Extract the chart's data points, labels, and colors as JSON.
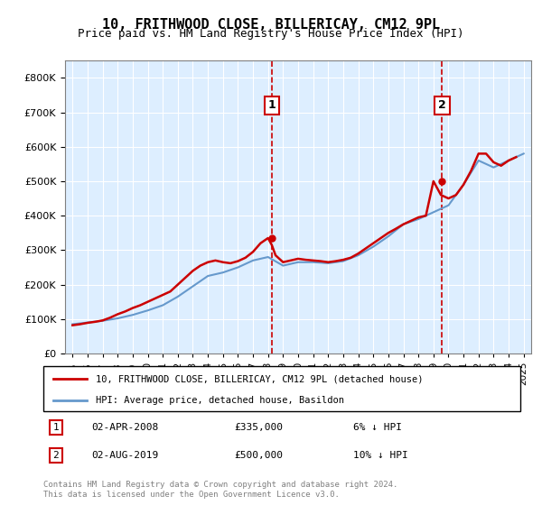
{
  "title": "10, FRITHWOOD CLOSE, BILLERICAY, CM12 9PL",
  "subtitle": "Price paid vs. HM Land Registry's House Price Index (HPI)",
  "legend_line1": "10, FRITHWOOD CLOSE, BILLERICAY, CM12 9PL (detached house)",
  "legend_line2": "HPI: Average price, detached house, Basildon",
  "annotation1": {
    "label": "1",
    "date": "02-APR-2008",
    "price": "£335,000",
    "pct": "6% ↓ HPI"
  },
  "annotation2": {
    "label": "2",
    "date": "02-AUG-2019",
    "price": "£500,000",
    "pct": "10% ↓ HPI"
  },
  "footer": "Contains HM Land Registry data © Crown copyright and database right 2024.\nThis data is licensed under the Open Government Licence v3.0.",
  "property_color": "#cc0000",
  "hpi_color": "#6699cc",
  "background_color": "#ddeeff",
  "years": [
    1995,
    1996,
    1997,
    1998,
    1999,
    2000,
    2001,
    2002,
    2003,
    2004,
    2005,
    2006,
    2007,
    2008,
    2009,
    2010,
    2011,
    2012,
    2013,
    2014,
    2015,
    2016,
    2017,
    2018,
    2019,
    2020,
    2021,
    2022,
    2023,
    2024,
    2025
  ],
  "hpi_values": [
    85000,
    90000,
    95000,
    102000,
    112000,
    125000,
    140000,
    165000,
    195000,
    225000,
    235000,
    250000,
    270000,
    280000,
    255000,
    265000,
    265000,
    262000,
    268000,
    285000,
    310000,
    340000,
    375000,
    390000,
    410000,
    430000,
    490000,
    560000,
    540000,
    560000,
    580000
  ],
  "property_values_x": [
    1995.0,
    1995.5,
    1996.0,
    1996.5,
    1997.0,
    1997.5,
    1998.0,
    1998.5,
    1999.0,
    1999.5,
    2000.0,
    2000.5,
    2001.0,
    2001.5,
    2002.0,
    2002.5,
    2003.0,
    2003.5,
    2004.0,
    2004.5,
    2005.0,
    2005.5,
    2006.0,
    2006.5,
    2007.0,
    2007.5,
    2008.0,
    2008.25,
    2008.5,
    2009.0,
    2009.5,
    2010.0,
    2010.5,
    2011.0,
    2011.5,
    2012.0,
    2012.5,
    2013.0,
    2013.5,
    2014.0,
    2014.5,
    2015.0,
    2015.5,
    2016.0,
    2016.5,
    2017.0,
    2017.5,
    2018.0,
    2018.5,
    2019.0,
    2019.25,
    2019.5,
    2020.0,
    2020.5,
    2021.0,
    2021.5,
    2022.0,
    2022.5,
    2023.0,
    2023.5,
    2024.0,
    2024.5
  ],
  "property_values_y": [
    82000,
    85000,
    89000,
    92000,
    96000,
    104000,
    114000,
    122000,
    132000,
    140000,
    150000,
    160000,
    170000,
    180000,
    200000,
    220000,
    240000,
    255000,
    265000,
    270000,
    265000,
    262000,
    268000,
    278000,
    295000,
    320000,
    335000,
    315000,
    285000,
    265000,
    270000,
    275000,
    272000,
    270000,
    268000,
    265000,
    268000,
    272000,
    278000,
    290000,
    305000,
    320000,
    335000,
    350000,
    362000,
    375000,
    385000,
    395000,
    400000,
    500000,
    480000,
    460000,
    450000,
    460000,
    490000,
    530000,
    580000,
    580000,
    555000,
    545000,
    560000,
    570000
  ],
  "sale1_x": 2008.25,
  "sale1_y": 335000,
  "sale2_x": 2019.58,
  "sale2_y": 500000,
  "ylim": [
    0,
    850000
  ],
  "xlim": [
    1994.5,
    2025.5
  ]
}
